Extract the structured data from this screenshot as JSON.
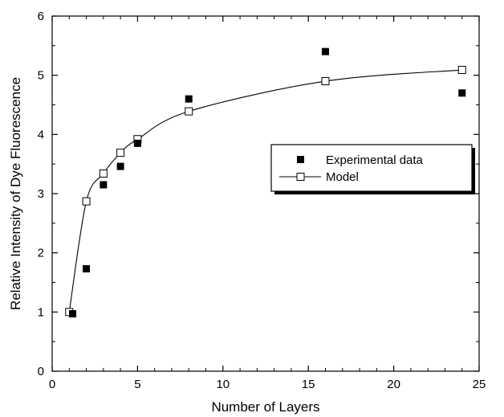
{
  "chart_data": {
    "type": "scatter",
    "title": "",
    "xlabel": "Number of Layers",
    "ylabel": "Relative Intensity of Dye Fluorescence",
    "xlim": [
      0,
      25
    ],
    "ylim": [
      0,
      6
    ],
    "x_ticks": [
      0,
      5,
      10,
      15,
      20,
      25
    ],
    "y_ticks": [
      0,
      1,
      2,
      3,
      4,
      5,
      6
    ],
    "grid": false,
    "legend_position": "right-middle",
    "series": [
      {
        "name": "Experimental data",
        "marker": "filled-square",
        "points": [
          {
            "x": 1.2,
            "y": 0.97
          },
          {
            "x": 2,
            "y": 1.73
          },
          {
            "x": 3,
            "y": 3.15
          },
          {
            "x": 4,
            "y": 3.46
          },
          {
            "x": 5,
            "y": 3.85
          },
          {
            "x": 8,
            "y": 4.6
          },
          {
            "x": 16,
            "y": 5.4
          },
          {
            "x": 24,
            "y": 4.7
          }
        ]
      },
      {
        "name": "Model",
        "marker": "open-square",
        "line": true,
        "points": [
          {
            "x": 1,
            "y": 1.0
          },
          {
            "x": 2,
            "y": 2.87
          },
          {
            "x": 3,
            "y": 3.34
          },
          {
            "x": 4,
            "y": 3.69
          },
          {
            "x": 5,
            "y": 3.92
          },
          {
            "x": 8,
            "y": 4.39
          },
          {
            "x": 16,
            "y": 4.9
          },
          {
            "x": 24,
            "y": 5.09
          }
        ]
      }
    ],
    "colors": {
      "marker": "#000000",
      "line": "#000000",
      "background": "#ffffff"
    }
  }
}
